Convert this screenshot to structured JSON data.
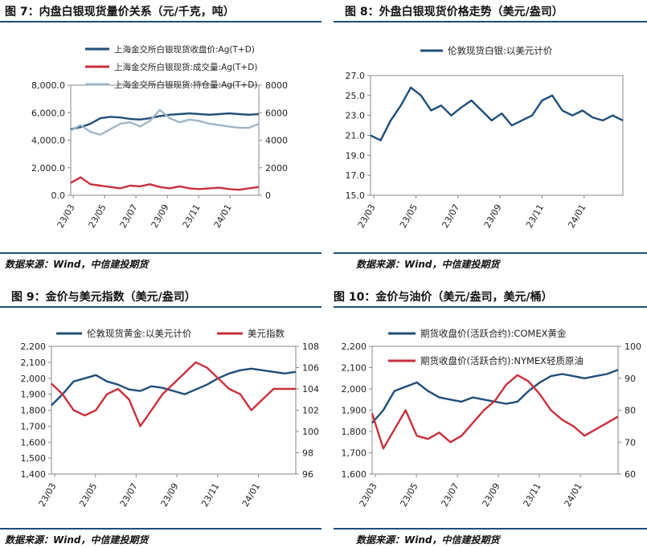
{
  "charts": [
    {
      "figure_title": "图 7：内盘白银现货量价关系（元/千克，吨）",
      "source": "数据来源：Wind，中信建投期货",
      "chart_data": {
        "type": "line",
        "title": "图 7：内盘白银现货量价关系（元/千克，吨）",
        "x_ticks": [
          "23/03",
          "23/05",
          "23/07",
          "23/09",
          "23/11",
          "24/01"
        ],
        "left_axis": {
          "ylim": [
            0,
            8000
          ],
          "ticks": [
            "0.0",
            "2,000.0",
            "4,000.0",
            "6,000.0",
            "8,000.0"
          ]
        },
        "right_axis": {
          "ylim": [
            0,
            8000
          ],
          "ticks": [
            "0",
            "2000",
            "4000",
            "6000",
            "8000"
          ]
        },
        "legend_position": "top-left",
        "series": [
          {
            "name": "上海金交所白银现货收盘价:Ag(T+D)",
            "axis": "left",
            "color": "#1f4e79",
            "values": [
              4800,
              4950,
              5200,
              5600,
              5700,
              5650,
              5550,
              5500,
              5600,
              5750,
              5850,
              5900,
              5950,
              5900,
              5850,
              5900,
              5950,
              5900,
              5850,
              5900
            ]
          },
          {
            "name": "上海金交所白银现货:成交量:Ag(T+D)",
            "axis": "right",
            "color": "#c8303c",
            "values": [
              900,
              1300,
              800,
              700,
              600,
              500,
              700,
              650,
              800,
              600,
              500,
              650,
              500,
              450,
              500,
              550,
              450,
              400,
              500,
              600
            ]
          },
          {
            "name": "上海金交所白银现货:持仓量:Ag(T+D)",
            "axis": "right",
            "color": "#9fb5c6",
            "values": [
              4700,
              5100,
              4600,
              4400,
              4800,
              5200,
              5300,
              5000,
              5400,
              6200,
              5600,
              5300,
              5500,
              5400,
              5200,
              5100,
              5000,
              4900,
              4900,
              5200
            ]
          }
        ]
      }
    },
    {
      "figure_title": "图 8：外盘白银现货价格走势（美元/盎司）",
      "source": "数据来源：Wind，中信建投期货",
      "chart_data": {
        "type": "line",
        "title": "图 8：外盘白银现货价格走势（美元/盎司）",
        "x_ticks": [
          "23/03",
          "23/05",
          "23/07",
          "23/09",
          "23/11",
          "24/01"
        ],
        "left_axis": {
          "ylim": [
            15,
            27
          ],
          "ticks": [
            "15.0",
            "17.0",
            "19.0",
            "21.0",
            "23.0",
            "25.0",
            "27.0"
          ]
        },
        "legend_position": "top-center",
        "series": [
          {
            "name": "伦敦现货白银:以美元计价",
            "axis": "left",
            "color": "#1f4e79",
            "values": [
              21.0,
              20.5,
              22.5,
              24.0,
              25.8,
              25.0,
              23.5,
              24.0,
              23.0,
              23.8,
              24.5,
              23.5,
              22.5,
              23.2,
              22.0,
              22.5,
              23.0,
              24.5,
              25.0,
              23.5,
              23.0,
              23.5,
              22.8,
              22.5,
              23.0,
              22.5
            ]
          }
        ]
      }
    },
    {
      "figure_title": "图 9：金价与美元指数（美元/盎司）",
      "source": "数据来源：Wind，中信建投期货",
      "chart_data": {
        "type": "line",
        "title": "图 9：金价与美元指数（美元/盎司）",
        "x_ticks": [
          "23/03",
          "23/05",
          "23/07",
          "23/09",
          "23/11",
          "24/01"
        ],
        "left_axis": {
          "ylim": [
            1400,
            2200
          ],
          "ticks": [
            "1,400",
            "1,500",
            "1,600",
            "1,700",
            "1,800",
            "1,900",
            "2,000",
            "2,100",
            "2,200"
          ]
        },
        "right_axis": {
          "ylim": [
            96,
            108
          ],
          "ticks": [
            "96",
            "98",
            "100",
            "102",
            "104",
            "106",
            "108"
          ]
        },
        "legend_position": "top",
        "series": [
          {
            "name": "伦敦现货黄金:以美元计价",
            "axis": "left",
            "color": "#1f4e79",
            "values": [
              1830,
              1900,
              1980,
              2000,
              2020,
              1980,
              1960,
              1930,
              1920,
              1950,
              1940,
              1920,
              1900,
              1930,
              1960,
              2000,
              2030,
              2050,
              2060,
              2050,
              2040,
              2030,
              2040
            ]
          },
          {
            "name": "美元指数",
            "axis": "right",
            "color": "#c8303c",
            "values": [
              104.5,
              103.5,
              102.0,
              101.5,
              102.0,
              103.5,
              104.0,
              103.0,
              100.5,
              102.0,
              103.5,
              104.5,
              105.5,
              106.5,
              106.0,
              105.0,
              104.0,
              103.5,
              102.0,
              103.0,
              104.0,
              104.0,
              104.0
            ]
          }
        ]
      }
    },
    {
      "figure_title": "图 10：金价与油价（美元/盎司，美元/桶）",
      "source": "数据来源：Wind，中信建投期货",
      "chart_data": {
        "type": "line",
        "title": "图 10：金价与油价（美元/盎司，美元/桶）",
        "x_ticks": [
          "23/03",
          "23/05",
          "23/07",
          "23/09",
          "23/11",
          "24/01"
        ],
        "left_axis": {
          "ylim": [
            1600,
            2200
          ],
          "ticks": [
            "1,600",
            "1,700",
            "1,800",
            "1,900",
            "2,000",
            "2,100",
            "2,200"
          ]
        },
        "right_axis": {
          "ylim": [
            60,
            100
          ],
          "ticks": [
            "60",
            "70",
            "80",
            "90",
            "100"
          ]
        },
        "legend_position": "top",
        "series": [
          {
            "name": "期货收盘价(活跃合约):COMEX黄金",
            "axis": "left",
            "color": "#1f4e79",
            "values": [
              1840,
              1900,
              1990,
              2010,
              2030,
              1990,
              1960,
              1950,
              1940,
              1960,
              1950,
              1940,
              1930,
              1940,
              1990,
              2030,
              2060,
              2070,
              2060,
              2050,
              2060,
              2070,
              2090
            ]
          },
          {
            "name": "期货收盘价(活跃合约):NYMEX轻质原油",
            "axis": "right",
            "color": "#c8303c",
            "values": [
              79,
              68,
              74,
              80,
              72,
              71,
              73,
              70,
              72,
              76,
              80,
              83,
              88,
              91,
              89,
              85,
              80,
              77,
              75,
              72,
              74,
              76,
              78
            ]
          }
        ]
      }
    }
  ]
}
